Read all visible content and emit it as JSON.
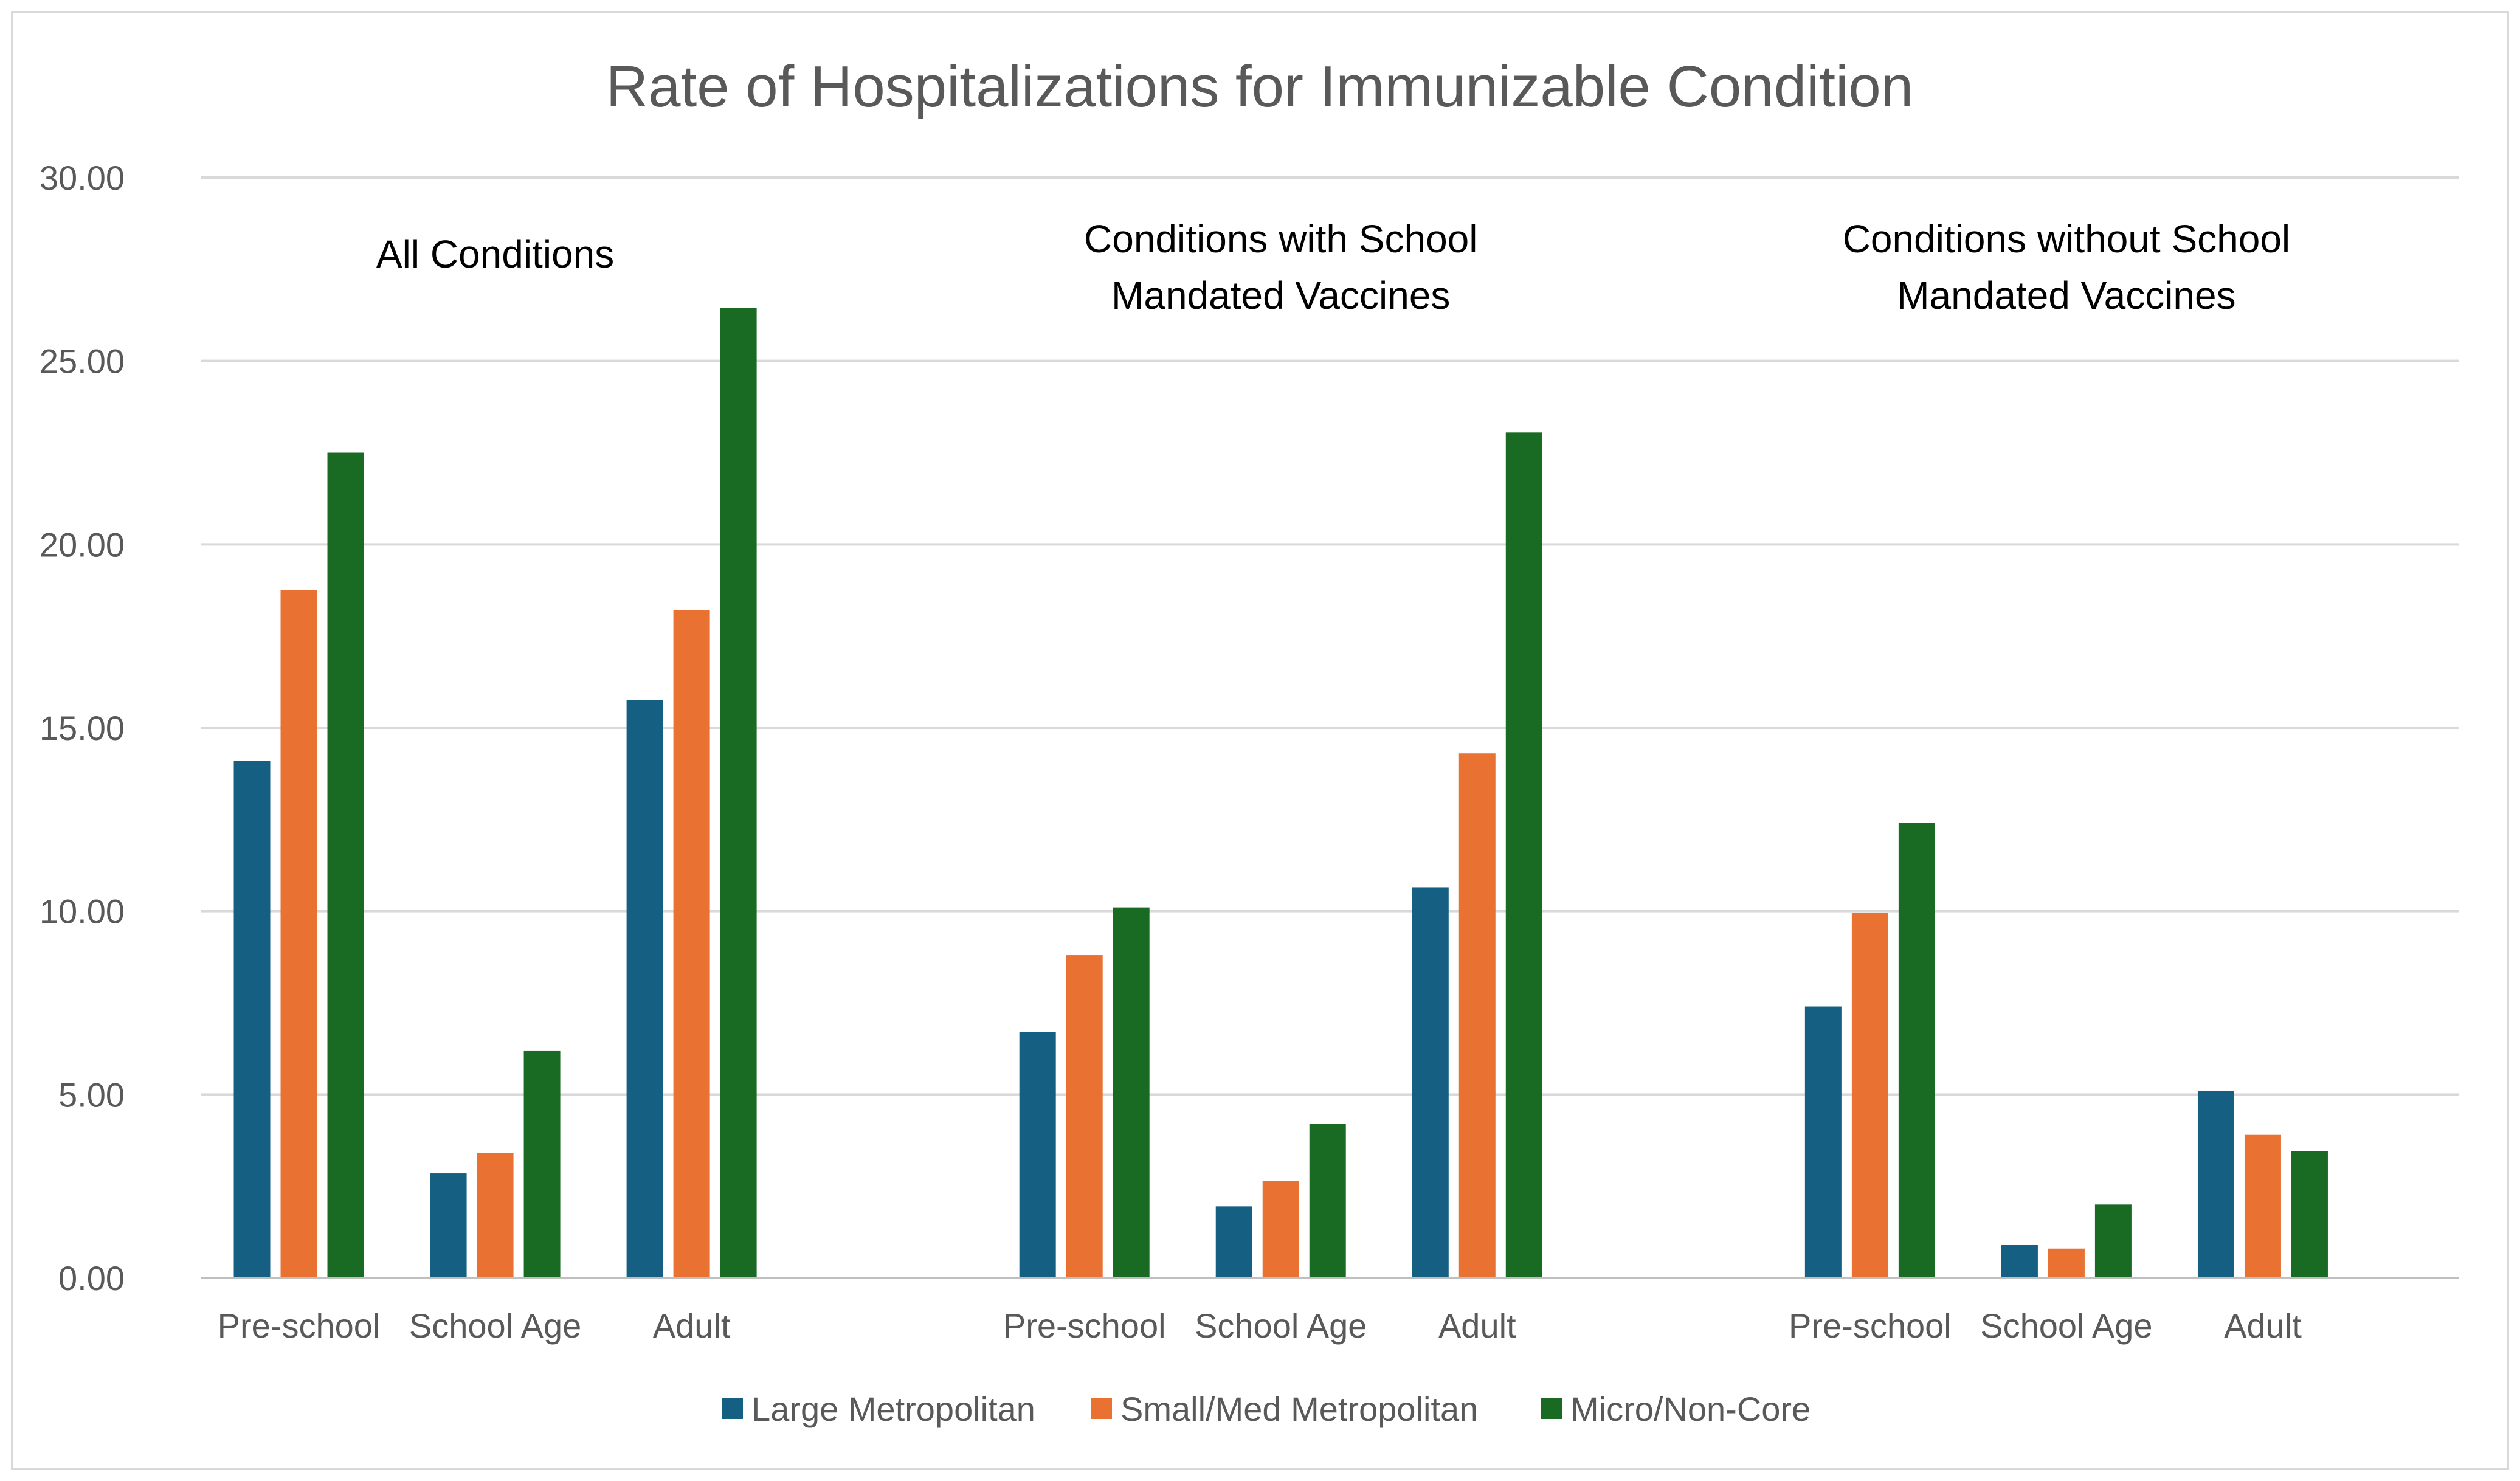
{
  "chart_data": {
    "type": "bar",
    "title": "Rate of Hospitalizations for Immunizable Condition",
    "xlabel": "",
    "ylabel": "",
    "ylim": [
      0,
      30
    ],
    "yticks": [
      "0.00",
      "5.00",
      "10.00",
      "15.00",
      "20.00",
      "25.00",
      "30.00"
    ],
    "grid": true,
    "legend_position": "bottom",
    "categories": [
      "Pre-school",
      "School Age",
      "Adult"
    ],
    "groups": [
      {
        "label_lines": [
          "All Conditions"
        ],
        "series_values": [
          [
            14.1,
            2.85,
            15.75
          ],
          [
            18.75,
            3.4,
            18.2
          ],
          [
            22.5,
            6.2,
            26.45
          ]
        ]
      },
      {
        "label_lines": [
          "Conditions with School",
          "Mandated Vaccines"
        ],
        "series_values": [
          [
            6.7,
            1.95,
            10.65
          ],
          [
            8.8,
            2.65,
            14.3
          ],
          [
            10.1,
            4.2,
            23.05
          ]
        ]
      },
      {
        "label_lines": [
          "Conditions without School",
          "Mandated Vaccines"
        ],
        "series_values": [
          [
            7.4,
            0.9,
            5.1
          ],
          [
            9.95,
            0.8,
            3.9
          ],
          [
            12.4,
            2.0,
            3.45
          ]
        ]
      }
    ],
    "series": [
      {
        "name": "Large Metropolitan",
        "color": "#156082"
      },
      {
        "name": "Small/Med Metropolitan",
        "color": "#E97132"
      },
      {
        "name": "Micro/Non-Core",
        "color": "#196B24"
      }
    ]
  }
}
